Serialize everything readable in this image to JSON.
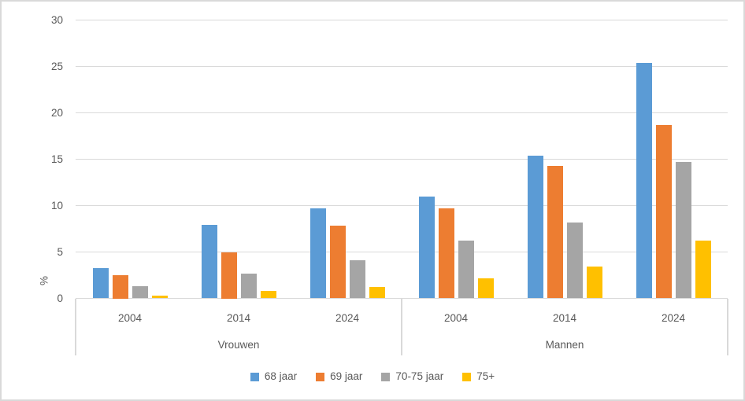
{
  "chart_data": {
    "type": "bar",
    "title": "",
    "xlabel": "",
    "ylabel": "%",
    "ylim": [
      0,
      30
    ],
    "yticks": [
      0,
      5,
      10,
      15,
      20,
      25,
      30
    ],
    "grid": true,
    "legend_position": "bottom",
    "group_labels": [
      "Vrouwen",
      "Mannen"
    ],
    "categories": [
      "2004",
      "2014",
      "2024",
      "2004",
      "2014",
      "2024"
    ],
    "series": [
      {
        "name": "68 jaar",
        "color": "#5B9BD5",
        "values": [
          3.3,
          7.9,
          9.7,
          11.0,
          15.4,
          25.4
        ]
      },
      {
        "name": "69 jaar",
        "color": "#ED7D31",
        "values": [
          2.5,
          5.0,
          7.8,
          9.7,
          14.3,
          18.7
        ]
      },
      {
        "name": "70-75 jaar",
        "color": "#A5A5A5",
        "values": [
          1.3,
          2.7,
          4.1,
          6.2,
          8.2,
          14.7
        ]
      },
      {
        "name": "75+",
        "color": "#FFC000",
        "values": [
          0.3,
          0.8,
          1.2,
          2.2,
          3.4,
          6.2
        ]
      }
    ],
    "style": {
      "background": "#FFFFFF",
      "border_color": "#D9D9D9",
      "gridline_color": "#D9D9D9",
      "axis_line_color": "#D9D9D9",
      "text_color": "#595959"
    }
  }
}
